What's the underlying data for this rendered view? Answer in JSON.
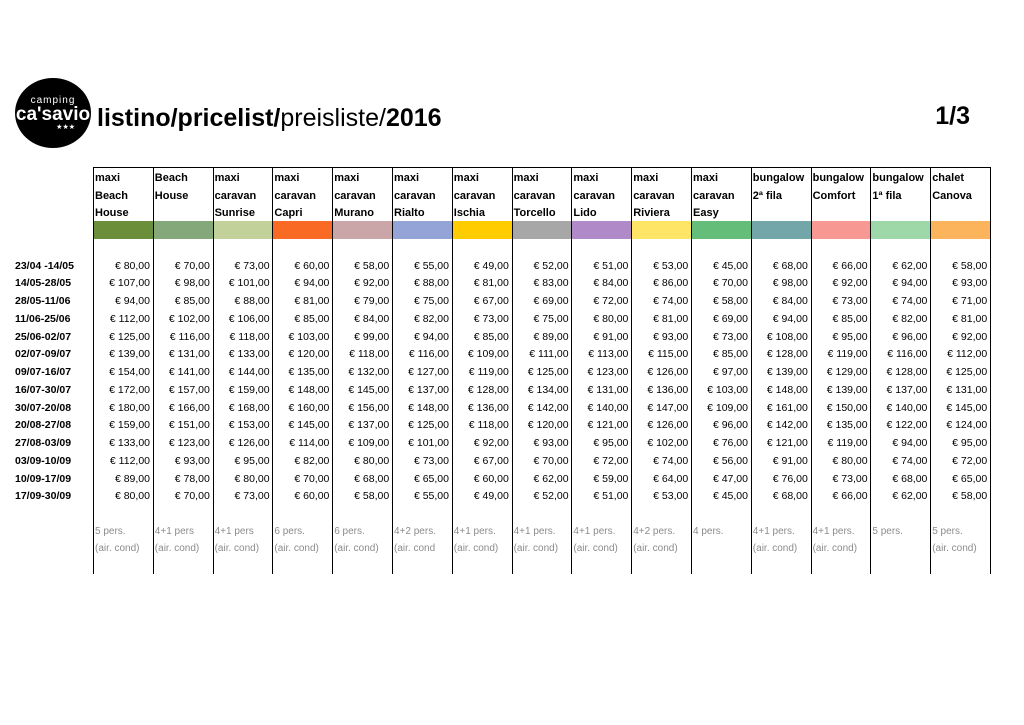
{
  "logo": {
    "line1": "camping",
    "line2": "ca'savio",
    "stars": "★★★"
  },
  "title": {
    "part1": "listino/pricelist/",
    "part2": "preisliste/",
    "part3": "2016"
  },
  "page_number": "1/3",
  "columns": [
    {
      "header": [
        "maxi",
        "Beach",
        "House"
      ],
      "color": "#6b8e3a",
      "note1": "5 pers.",
      "note2": "(air. cond)"
    },
    {
      "header": [
        "Beach",
        "House",
        ""
      ],
      "color": "#84a87a",
      "note1": "4+1 pers",
      "note2": "(air. cond)"
    },
    {
      "header": [
        "maxi",
        "caravan",
        "Sunrise"
      ],
      "color": "#c2d19a",
      "note1": "4+1 pers",
      "note2": "(air. cond)"
    },
    {
      "header": [
        "maxi",
        "caravan",
        "Capri"
      ],
      "color": "#f96b25",
      "note1": "6 pers.",
      "note2": "(air. cond)"
    },
    {
      "header": [
        "maxi",
        "caravan",
        "Murano"
      ],
      "color": "#caa6a8",
      "note1": "6 pers.",
      "note2": "(air. cond)"
    },
    {
      "header": [
        "maxi",
        "caravan",
        "Rialto"
      ],
      "color": "#95a4d6",
      "note1": "4+2 pers.",
      "note2": "(air. cond"
    },
    {
      "header": [
        "maxi",
        "caravan",
        "Ischia"
      ],
      "color": "#ffcc00",
      "note1": "4+1 pers.",
      "note2": "(air. cond)"
    },
    {
      "header": [
        "maxi",
        "caravan",
        "Torcello"
      ],
      "color": "#a7a7a7",
      "note1": "4+1 pers.",
      "note2": "(air. cond)"
    },
    {
      "header": [
        "maxi",
        "caravan",
        "Lido"
      ],
      "color": "#b08ac8",
      "note1": "4+1 pers.",
      "note2": "(air. cond)"
    },
    {
      "header": [
        "maxi",
        "caravan",
        "Riviera"
      ],
      "color": "#ffe566",
      "note1": "4+2 pers.",
      "note2": "(air. cond)"
    },
    {
      "header": [
        "maxi",
        "caravan",
        "Easy"
      ],
      "color": "#64be7a",
      "note1": "4 pers.",
      "note2": ""
    },
    {
      "header": [
        "bungalow",
        "2ª  fila",
        ""
      ],
      "color": "#72a6a8",
      "note1": "4+1 pers.",
      "note2": "(air. cond)"
    },
    {
      "header": [
        "bungalow",
        "Comfort",
        ""
      ],
      "color": "#f79892",
      "note1": "4+1 pers.",
      "note2": "(air. cond)"
    },
    {
      "header": [
        "bungalow",
        " 1ª  fila",
        ""
      ],
      "color": "#9ed7a8",
      "note1": "5 pers.",
      "note2": ""
    },
    {
      "header": [
        "chalet",
        "Canova",
        ""
      ],
      "color": "#fbb35c",
      "note1": "5 pers.",
      "note2": "(air. cond)"
    }
  ],
  "rows": [
    {
      "date": "23/04 -14/05",
      "prices": [
        "€ 80,00",
        "€ 70,00",
        "€ 73,00",
        "€ 60,00",
        "€ 58,00",
        "€ 55,00",
        "€ 49,00",
        "€ 52,00",
        "€ 51,00",
        "€ 53,00",
        "€ 45,00",
        "€ 68,00",
        "€ 66,00",
        "€ 62,00",
        "€ 58,00"
      ]
    },
    {
      "date": "14/05-28/05",
      "prices": [
        "€ 107,00",
        "€ 98,00",
        "€ 101,00",
        "€ 94,00",
        "€ 92,00",
        "€ 88,00",
        "€ 81,00",
        "€ 83,00",
        "€ 84,00",
        "€ 86,00",
        "€ 70,00",
        "€ 98,00",
        "€ 92,00",
        "€ 94,00",
        "€ 93,00"
      ]
    },
    {
      "date": "28/05-11/06",
      "prices": [
        "€ 94,00",
        "€ 85,00",
        "€ 88,00",
        "€ 81,00",
        "€ 79,00",
        "€ 75,00",
        "€ 67,00",
        "€ 69,00",
        "€ 72,00",
        "€ 74,00",
        "€ 58,00",
        "€ 84,00",
        "€ 73,00",
        "€ 74,00",
        "€ 71,00"
      ]
    },
    {
      "date": "11/06-25/06",
      "prices": [
        "€ 112,00",
        "€ 102,00",
        "€ 106,00",
        "€ 85,00",
        "€ 84,00",
        "€ 82,00",
        "€ 73,00",
        "€ 75,00",
        "€ 80,00",
        "€ 81,00",
        "€ 69,00",
        "€ 94,00",
        "€ 85,00",
        "€ 82,00",
        "€ 81,00"
      ]
    },
    {
      "date": "25/06-02/07",
      "prices": [
        "€ 125,00",
        "€ 116,00",
        "€ 118,00",
        "€ 103,00",
        "€ 99,00",
        "€ 94,00",
        "€ 85,00",
        "€ 89,00",
        "€ 91,00",
        "€ 93,00",
        "€ 73,00",
        "€ 108,00",
        "€ 95,00",
        "€ 96,00",
        "€ 92,00"
      ]
    },
    {
      "date": "02/07-09/07",
      "prices": [
        "€ 139,00",
        "€ 131,00",
        "€ 133,00",
        "€ 120,00",
        "€ 118,00",
        "€ 116,00",
        "€ 109,00",
        "€ 111,00",
        "€ 113,00",
        "€ 115,00",
        "€ 85,00",
        "€ 128,00",
        "€ 119,00",
        "€ 116,00",
        "€ 112,00"
      ]
    },
    {
      "date": "09/07-16/07",
      "prices": [
        "€ 154,00",
        "€ 141,00",
        "€ 144,00",
        "€ 135,00",
        "€ 132,00",
        "€ 127,00",
        "€ 119,00",
        "€ 125,00",
        "€ 123,00",
        "€ 126,00",
        "€ 97,00",
        "€ 139,00",
        "€ 129,00",
        "€ 128,00",
        "€ 125,00"
      ]
    },
    {
      "date": "16/07-30/07",
      "prices": [
        "€ 172,00",
        "€ 157,00",
        "€ 159,00",
        "€ 148,00",
        "€ 145,00",
        "€ 137,00",
        "€ 128,00",
        "€ 134,00",
        "€ 131,00",
        "€ 136,00",
        "€ 103,00",
        "€ 148,00",
        "€ 139,00",
        "€ 137,00",
        "€ 131,00"
      ]
    },
    {
      "date": "30/07-20/08",
      "prices": [
        "€ 180,00",
        "€ 166,00",
        "€ 168,00",
        "€ 160,00",
        "€ 156,00",
        "€ 148,00",
        "€ 136,00",
        "€ 142,00",
        "€ 140,00",
        "€ 147,00",
        "€ 109,00",
        "€ 161,00",
        "€ 150,00",
        "€ 140,00",
        "€ 145,00"
      ]
    },
    {
      "date": "20/08-27/08",
      "prices": [
        "€ 159,00",
        "€ 151,00",
        "€ 153,00",
        "€ 145,00",
        "€ 137,00",
        "€ 125,00",
        "€ 118,00",
        "€ 120,00",
        "€ 121,00",
        "€ 126,00",
        "€ 96,00",
        "€ 142,00",
        "€ 135,00",
        "€ 122,00",
        "€ 124,00"
      ]
    },
    {
      "date": "27/08-03/09",
      "prices": [
        "€ 133,00",
        "€ 123,00",
        "€ 126,00",
        "€ 114,00",
        "€ 109,00",
        "€ 101,00",
        "€ 92,00",
        "€ 93,00",
        "€ 95,00",
        "€ 102,00",
        "€ 76,00",
        "€ 121,00",
        "€ 119,00",
        "€ 94,00",
        "€ 95,00"
      ]
    },
    {
      "date": "03/09-10/09",
      "prices": [
        "€ 112,00",
        "€ 93,00",
        "€ 95,00",
        "€ 82,00",
        "€ 80,00",
        "€ 73,00",
        "€ 67,00",
        "€ 70,00",
        "€ 72,00",
        "€ 74,00",
        "€ 56,00",
        "€ 91,00",
        "€ 80,00",
        "€ 74,00",
        "€ 72,00"
      ]
    },
    {
      "date": "10/09-17/09",
      "prices": [
        "€ 89,00",
        "€ 78,00",
        "€ 80,00",
        "€ 70,00",
        "€ 68,00",
        "€ 65,00",
        "€ 60,00",
        "€ 62,00",
        "€ 59,00",
        "€ 64,00",
        "€ 47,00",
        "€ 76,00",
        "€ 73,00",
        "€ 68,00",
        "€ 65,00"
      ]
    },
    {
      "date": "17/09-30/09",
      "prices": [
        "€ 80,00",
        "€ 70,00",
        "€ 73,00",
        "€ 60,00",
        "€ 58,00",
        "€ 55,00",
        "€ 49,00",
        "€ 52,00",
        "€ 51,00",
        "€ 53,00",
        "€ 45,00",
        "€ 68,00",
        "€ 66,00",
        "€ 62,00",
        "€ 58,00"
      ]
    }
  ]
}
